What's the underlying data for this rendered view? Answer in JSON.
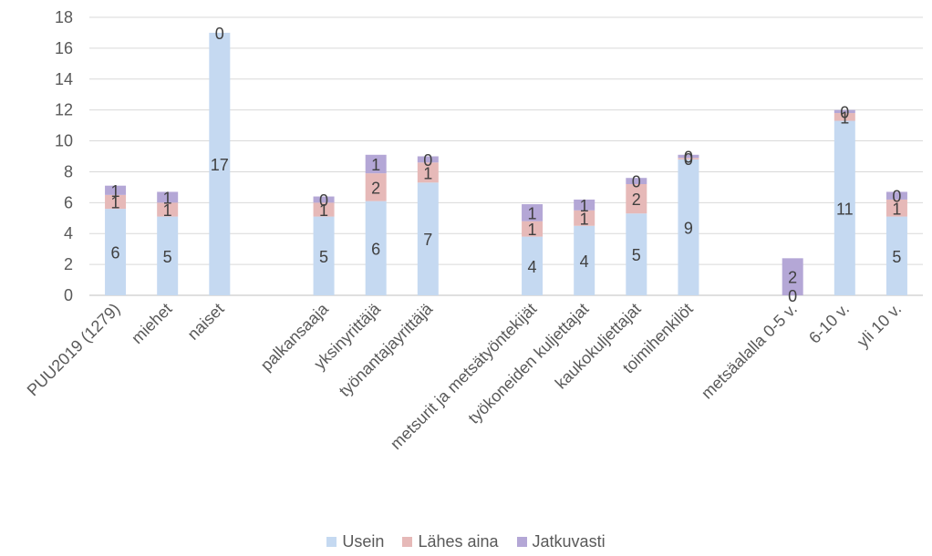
{
  "chart_data": {
    "type": "bar",
    "stacked": true,
    "categories": [
      "PUU2019 (1279)",
      "miehet",
      "naiset",
      "",
      "palkansaaja",
      "yksinyrittäjä",
      "työnantajayrittäjä",
      "",
      "metsurit ja metsätyöntekijät",
      "työkoneiden kuljettajat",
      "kaukokuljettajat",
      "toimihenkilöt",
      "",
      "metsäalalla 0-5 v.",
      "6-10 v.",
      "yli 10 v."
    ],
    "series": [
      {
        "name": "Usein",
        "color": "#c5d9f1",
        "values": [
          5.6,
          5.1,
          17.0,
          null,
          5.1,
          6.1,
          7.3,
          null,
          3.8,
          4.5,
          5.3,
          8.8,
          null,
          0,
          11.3,
          5.1
        ],
        "labels": [
          "6",
          "5",
          "17",
          "",
          "5",
          "6",
          "7",
          "",
          "4",
          "4",
          "5",
          "9",
          "",
          "0",
          "11",
          "5"
        ]
      },
      {
        "name": "Lähes aina",
        "color": "#e6b9b8",
        "values": [
          0.9,
          0.9,
          0,
          null,
          0.9,
          1.8,
          1.3,
          null,
          1.0,
          1.0,
          1.9,
          0.1,
          null,
          0,
          0.5,
          1.1
        ],
        "labels": [
          "1",
          "1",
          "",
          "",
          "1",
          "2",
          "1",
          "",
          "1",
          "1",
          "2",
          "0",
          "",
          "",
          "1",
          "1"
        ]
      },
      {
        "name": "Jatkuvasti",
        "color": "#b4a7d6",
        "values": [
          0.6,
          0.7,
          0,
          null,
          0.4,
          1.2,
          0.4,
          null,
          1.1,
          0.7,
          0.4,
          0.2,
          null,
          2.4,
          0.2,
          0.5
        ],
        "labels": [
          "1",
          "1",
          "0",
          "",
          "0",
          "1",
          "0",
          "",
          "1",
          "1",
          "0",
          "0",
          "",
          "2",
          "0",
          "0"
        ]
      }
    ],
    "ylim": [
      0,
      18
    ],
    "yticks": [
      0,
      2,
      4,
      6,
      8,
      10,
      12,
      14,
      16,
      18
    ],
    "grid": true,
    "legend_position": "bottom"
  }
}
